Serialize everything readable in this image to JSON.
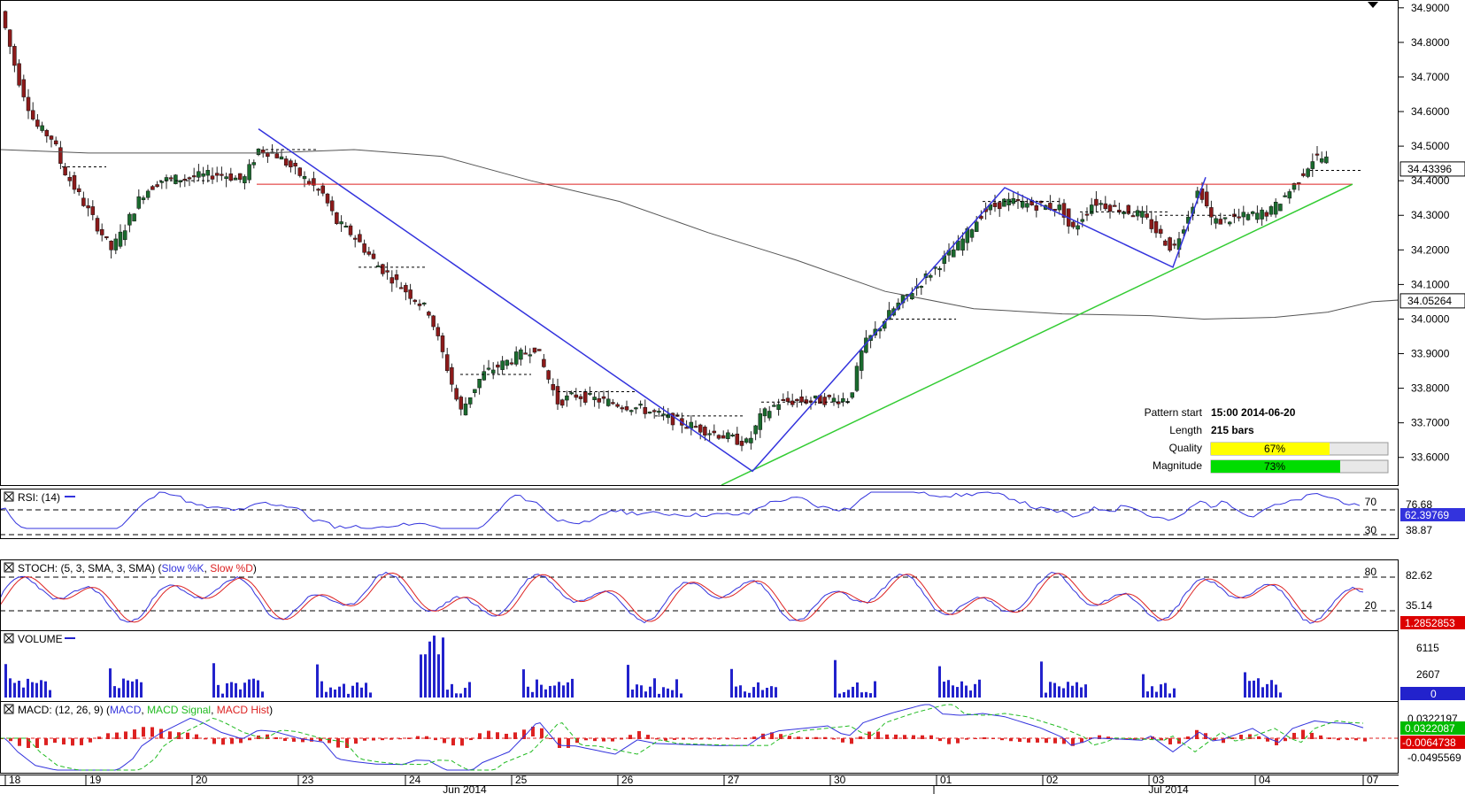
{
  "chart_data": [
    {
      "name": "price",
      "type": "candlestick",
      "price_axis": {
        "ylim": [
          33.52,
          34.92
        ],
        "ticks": [
          "34.9000",
          "34.8000",
          "34.7000",
          "34.6000",
          "34.5000",
          "34.4000",
          "34.3000",
          "34.2000",
          "34.1000",
          "34.0000",
          "33.9000",
          "33.8000",
          "33.7000",
          "33.6000"
        ]
      },
      "last_price": "34.43396",
      "ma_value": "34.05264",
      "colors": {
        "bull": "#1a6b2e",
        "bear": "#8c1a1a",
        "ma": "#555555",
        "pattern_line": "#3333dd",
        "trend_line": "#33cc33",
        "resistance": "#dd2222"
      },
      "pattern_info": {
        "start_label": "Pattern start",
        "start_value": "15:00 2014-06-20",
        "length_label": "Length",
        "length_value": "215 bars",
        "quality_label": "Quality",
        "quality_value": "67%",
        "quality": 0.67,
        "quality_color": "#ffff00",
        "magnitude_label": "Magnitude",
        "magnitude_value": "73%",
        "magnitude": 0.73,
        "magnitude_color": "#00dd00"
      }
    },
    {
      "name": "rsi",
      "type": "line",
      "title": "RSI: (14)",
      "levels": [
        "70",
        "30"
      ],
      "right_labels": [
        "76.68",
        "38.87"
      ],
      "last_value": "62.39769",
      "colors": {
        "line": "#3333dd"
      }
    },
    {
      "name": "stochastic",
      "type": "line",
      "title_prefix": "STOCH: (5, 3, SMA, 3, SMA)",
      "series": [
        {
          "name": "Slow %K",
          "color": "#3333dd"
        },
        {
          "name": "Slow %D",
          "color": "#dd2222"
        }
      ],
      "levels": [
        "80",
        "20"
      ],
      "right_labels": [
        "82.62",
        "35.14"
      ],
      "last_value": "1.2852853"
    },
    {
      "name": "volume",
      "type": "bar",
      "title": "VOLUME",
      "right_labels": [
        "6115",
        "2607"
      ],
      "last_value": "0",
      "colors": {
        "bar": "#2222cc"
      }
    },
    {
      "name": "macd",
      "type": "line",
      "title_prefix": "MACD: (12, 26, 9)",
      "series": [
        {
          "name": "MACD",
          "color": "#3333dd"
        },
        {
          "name": "MACD Signal",
          "color": "#22bb22"
        },
        {
          "name": "MACD Hist",
          "color": "#dd2222"
        }
      ],
      "right_labels": [
        "0.0322197",
        "-0.0495569"
      ],
      "last_values": [
        "0.0322087",
        "-0.0064738"
      ]
    }
  ],
  "x_axis": {
    "days": [
      "18",
      "19",
      "20",
      "23",
      "24",
      "25",
      "26",
      "27",
      "30",
      "01",
      "02",
      "03",
      "04",
      "07"
    ],
    "months": [
      "Jun 2014",
      "Jul 2014"
    ]
  }
}
